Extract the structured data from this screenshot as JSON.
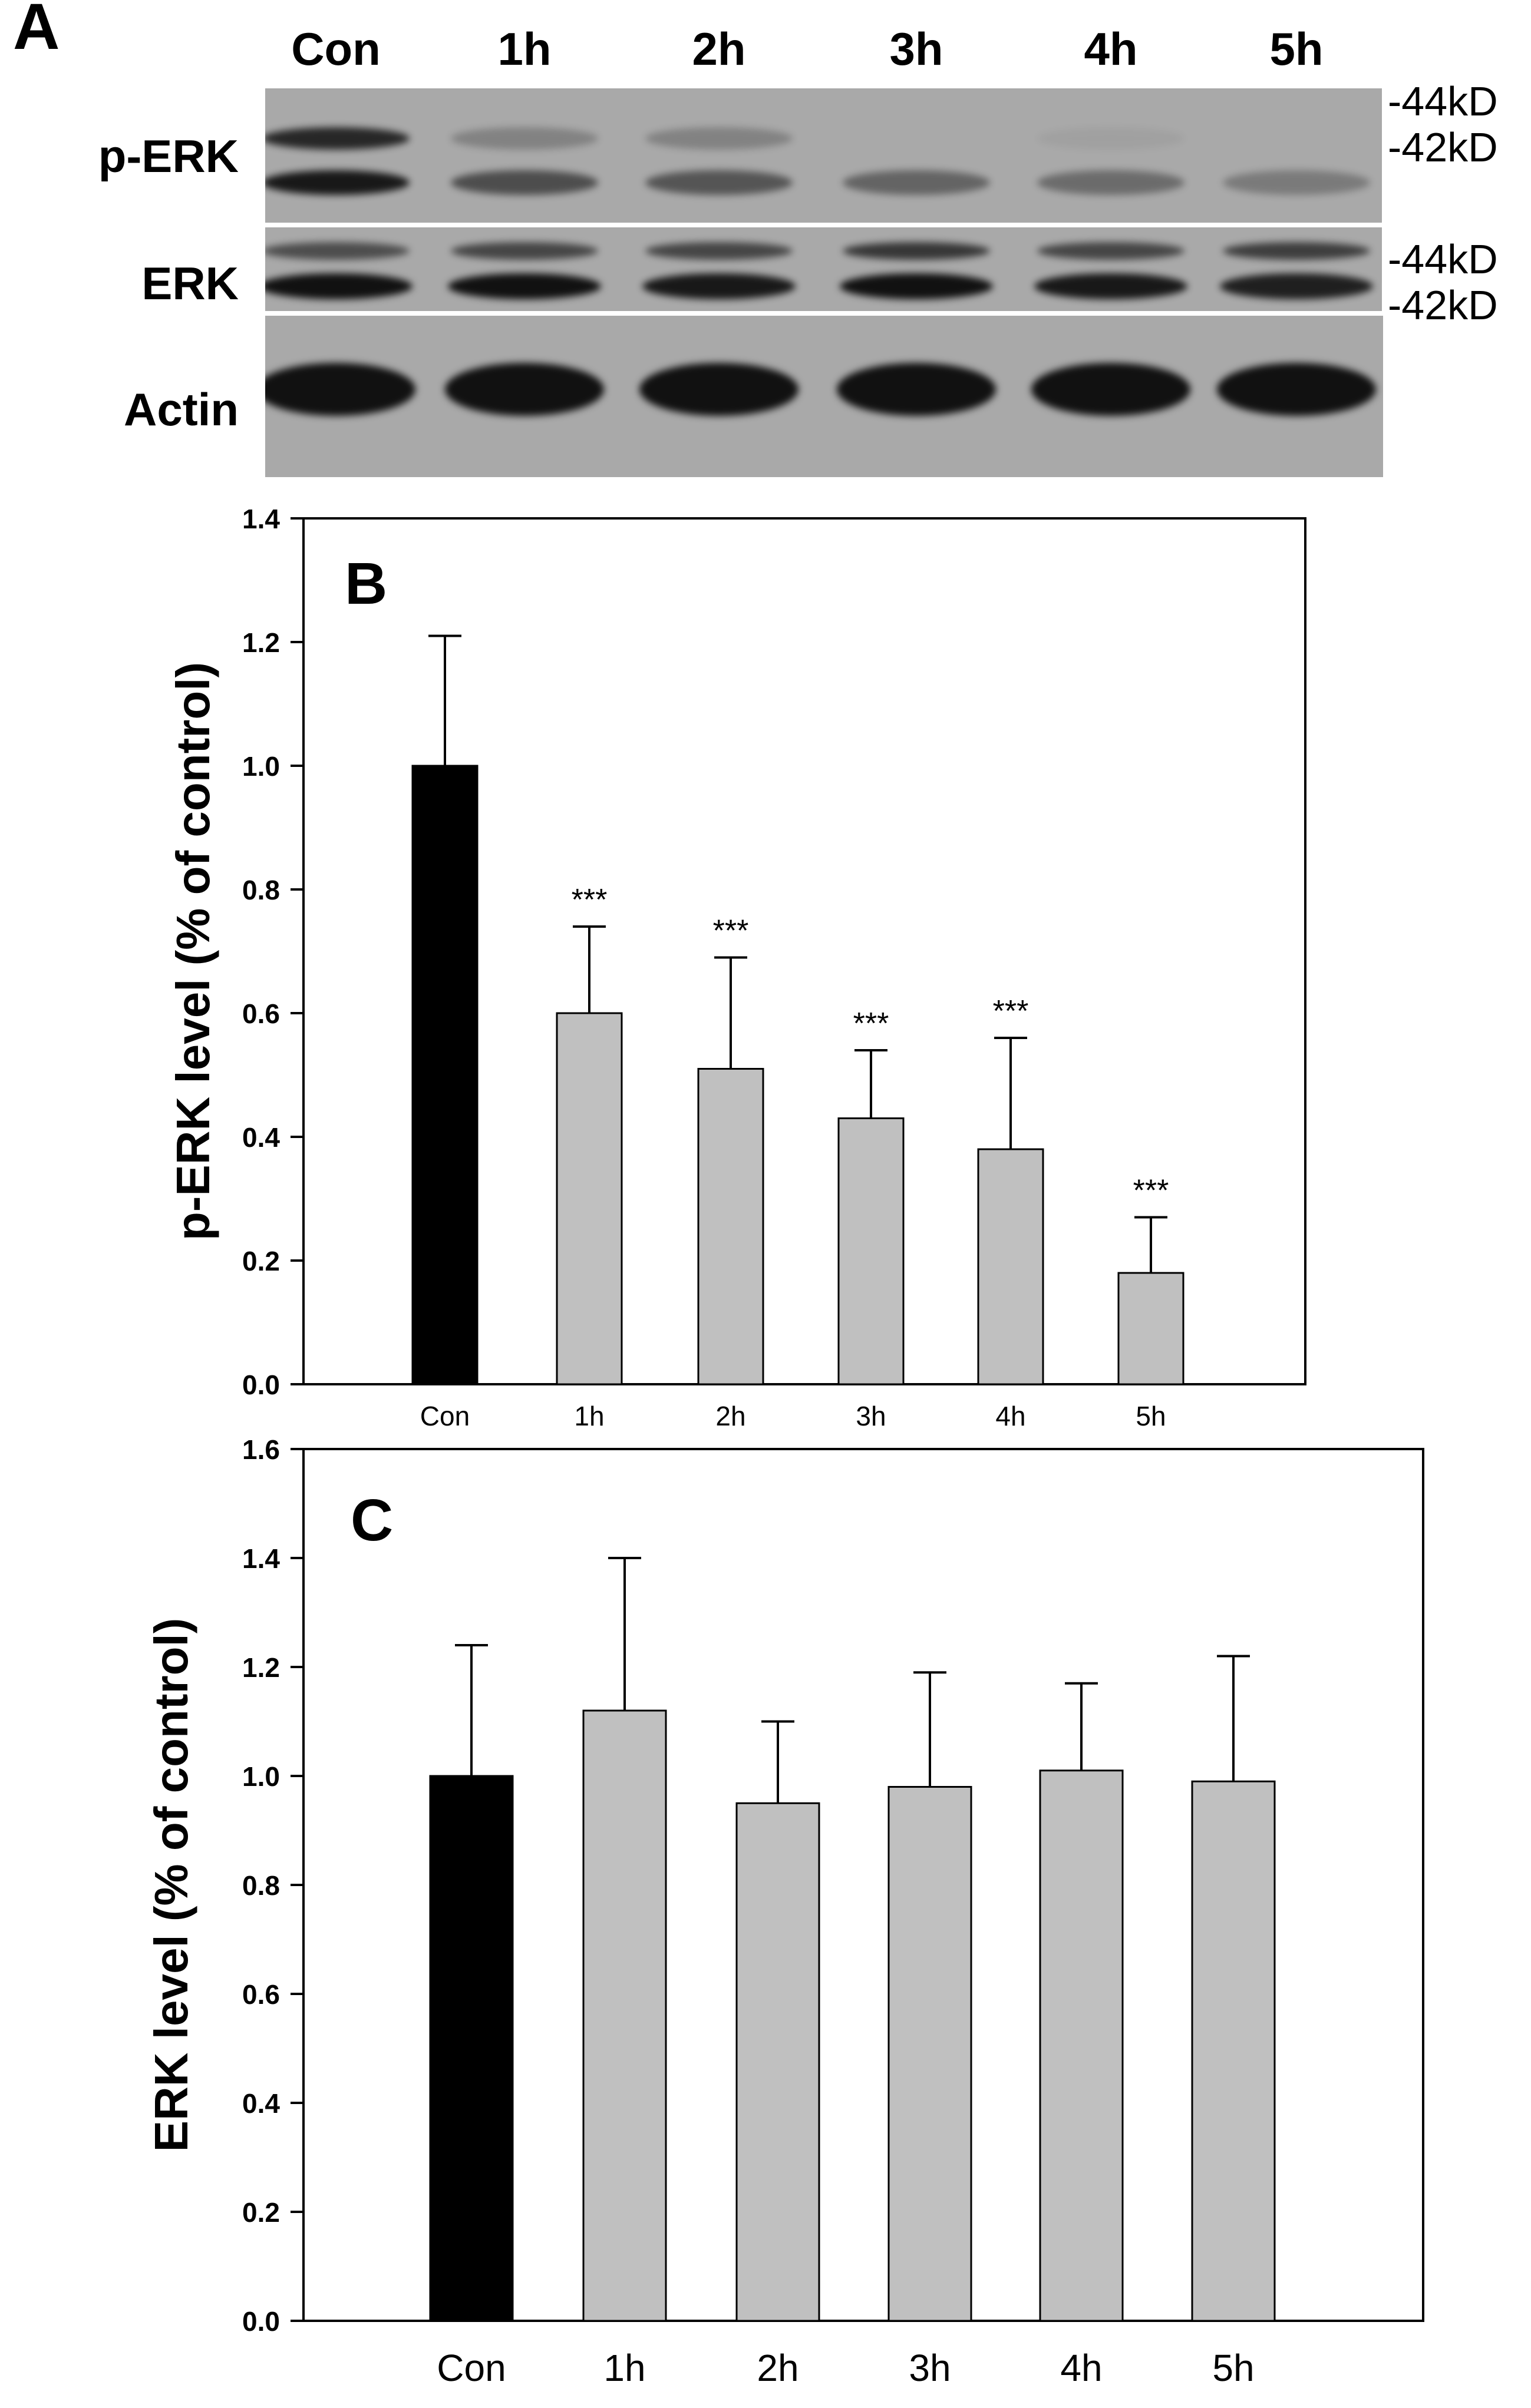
{
  "panel_a": {
    "letter": "A",
    "lanes": [
      "Con",
      "1h",
      "2h",
      "3h",
      "4h",
      "5h"
    ],
    "rows": [
      {
        "label": "p-ERK",
        "markers": [
          "-44kD",
          "-42kD"
        ],
        "band_intensity_44": [
          0.85,
          0.25,
          0.25,
          0.0,
          0.05,
          0.0
        ],
        "band_intensity_42": [
          0.95,
          0.6,
          0.55,
          0.45,
          0.4,
          0.3
        ]
      },
      {
        "label": "ERK",
        "markers": [
          "-44kD",
          "-42kD"
        ],
        "band_intensity_44": [
          0.6,
          0.65,
          0.65,
          0.75,
          0.65,
          0.7
        ],
        "band_intensity_42": [
          1.0,
          1.0,
          0.95,
          1.0,
          0.95,
          0.9
        ]
      },
      {
        "label": "Actin",
        "markers": [],
        "band_intensity": [
          1.0,
          1.0,
          1.0,
          1.0,
          1.0,
          1.0
        ]
      }
    ]
  },
  "chart_data": [
    {
      "type": "bar",
      "panel": "B",
      "title": "",
      "xlabel": "",
      "ylabel": "p-ERK level (% of control)",
      "categories": [
        "Con",
        "1h",
        "2h",
        "3h",
        "4h",
        "5h"
      ],
      "values": [
        1.0,
        0.6,
        0.51,
        0.43,
        0.38,
        0.18
      ],
      "errors": [
        0.21,
        0.14,
        0.18,
        0.11,
        0.18,
        0.09
      ],
      "annotations": [
        "",
        "***",
        "***",
        "***",
        "***",
        "***"
      ],
      "bar_colors": [
        "#000000",
        "#c0c0c0",
        "#c0c0c0",
        "#c0c0c0",
        "#c0c0c0",
        "#c0c0c0"
      ],
      "ylim": [
        0,
        1.4
      ],
      "yticks": [
        0.0,
        0.2,
        0.4,
        0.6,
        0.8,
        1.0,
        1.2,
        1.4
      ],
      "ytick_labels": [
        "0.0",
        "0.2",
        "0.4",
        "0.6",
        "0.8",
        "1.0",
        "1.2",
        "1.4"
      ],
      "grid": false
    },
    {
      "type": "bar",
      "panel": "C",
      "title": "",
      "xlabel": "",
      "ylabel": "ERK level (% of control)",
      "categories": [
        "Con",
        "1h",
        "2h",
        "3h",
        "4h",
        "5h"
      ],
      "values": [
        1.0,
        1.12,
        0.95,
        0.98,
        1.01,
        0.99
      ],
      "errors": [
        0.24,
        0.28,
        0.15,
        0.21,
        0.16,
        0.23
      ],
      "annotations": [
        "",
        "",
        "",
        "",
        "",
        ""
      ],
      "bar_colors": [
        "#000000",
        "#c0c0c0",
        "#c0c0c0",
        "#c0c0c0",
        "#c0c0c0",
        "#c0c0c0"
      ],
      "ylim": [
        0,
        1.6
      ],
      "yticks": [
        0.0,
        0.2,
        0.4,
        0.6,
        0.8,
        1.0,
        1.2,
        1.4,
        1.6
      ],
      "ytick_labels": [
        "0.0",
        "0.2",
        "0.4",
        "0.6",
        "0.8",
        "1.0",
        "1.2",
        "1.4",
        "1.6"
      ],
      "grid": false
    }
  ]
}
